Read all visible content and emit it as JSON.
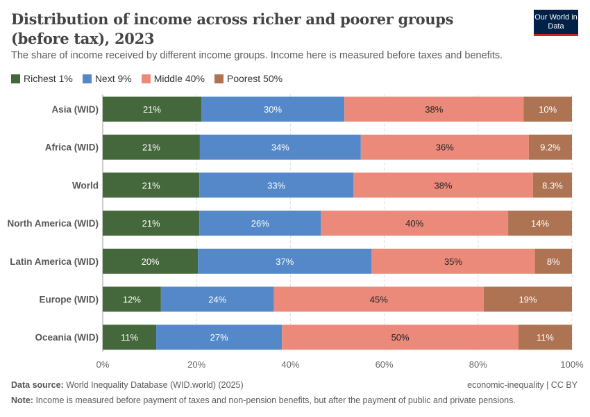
{
  "header": {
    "title": "Distribution of income across richer and poorer groups (before tax), 2023",
    "subtitle": "The share of income received by different income groups. Income here is measured before taxes and benefits.",
    "logo": "Our World in Data"
  },
  "footer": {
    "source_label": "Data source:",
    "source": "World Inequality Database (WID.world) (2025)",
    "license": "economic-inequality | CC BY",
    "note_label": "Note:",
    "note": "Income is measured before payment of taxes and non-pension benefits, but after the payment of public and private pensions."
  },
  "chart_data": {
    "type": "bar",
    "orientation": "horizontal",
    "stacked": true,
    "title": "Distribution of income across richer and poorer groups (before tax), 2023",
    "categories": [
      "Asia (WID)",
      "Africa (WID)",
      "World",
      "North America (WID)",
      "Latin America (WID)",
      "Europe (WID)",
      "Oceania (WID)"
    ],
    "series": [
      {
        "name": "Richest 1%",
        "color": "#44673b",
        "text_color": "#ffffff",
        "values": [
          21.0,
          20.7,
          20.6,
          20.6,
          20.3,
          12.4,
          11.4
        ],
        "labels": [
          "21%",
          "21%",
          "21%",
          "21%",
          "20%",
          "12%",
          "11%"
        ]
      },
      {
        "name": "Next 9%",
        "color": "#5488c8",
        "text_color": "#ffffff",
        "values": [
          30.5,
          34.3,
          32.8,
          25.9,
          37.0,
          24.1,
          26.8
        ],
        "labels": [
          "30%",
          "34%",
          "33%",
          "26%",
          "37%",
          "24%",
          "27%"
        ]
      },
      {
        "name": "Middle 40%",
        "color": "#eb8a7b",
        "text_color": "#222222",
        "values": [
          38.2,
          35.8,
          38.3,
          39.9,
          34.8,
          44.7,
          50.4
        ],
        "labels": [
          "38%",
          "36%",
          "38%",
          "40%",
          "35%",
          "45%",
          "50%"
        ]
      },
      {
        "name": "Poorest 50%",
        "color": "#ad7352",
        "text_color": "#ffffff",
        "values": [
          10.3,
          9.2,
          8.3,
          13.6,
          7.9,
          18.8,
          11.4
        ],
        "labels": [
          "10%",
          "9.2%",
          "8.3%",
          "14%",
          "8%",
          "19%",
          "11%"
        ]
      }
    ],
    "xlim": [
      0,
      100
    ],
    "xticks": [
      "0%",
      "20%",
      "40%",
      "60%",
      "80%",
      "100%"
    ],
    "grid": true,
    "legend_position": "top-left"
  }
}
